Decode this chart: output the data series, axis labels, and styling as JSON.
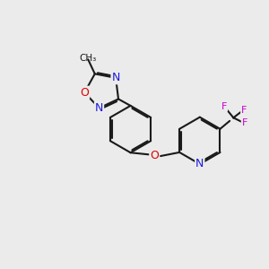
{
  "bg_color": "#ebebeb",
  "bond_color": "#1a1a1a",
  "bond_width": 1.5,
  "dbo_inner": 0.055,
  "atom_colors": {
    "O": "#dd0000",
    "N": "#1a1add",
    "F": "#cc00cc",
    "C": "#1a1a1a"
  },
  "fontsize": 9.0,
  "small_fontsize": 8.0,
  "figsize": [
    3.0,
    3.0
  ],
  "dpi": 100,
  "xlim": [
    0,
    10
  ],
  "ylim": [
    0,
    10
  ]
}
